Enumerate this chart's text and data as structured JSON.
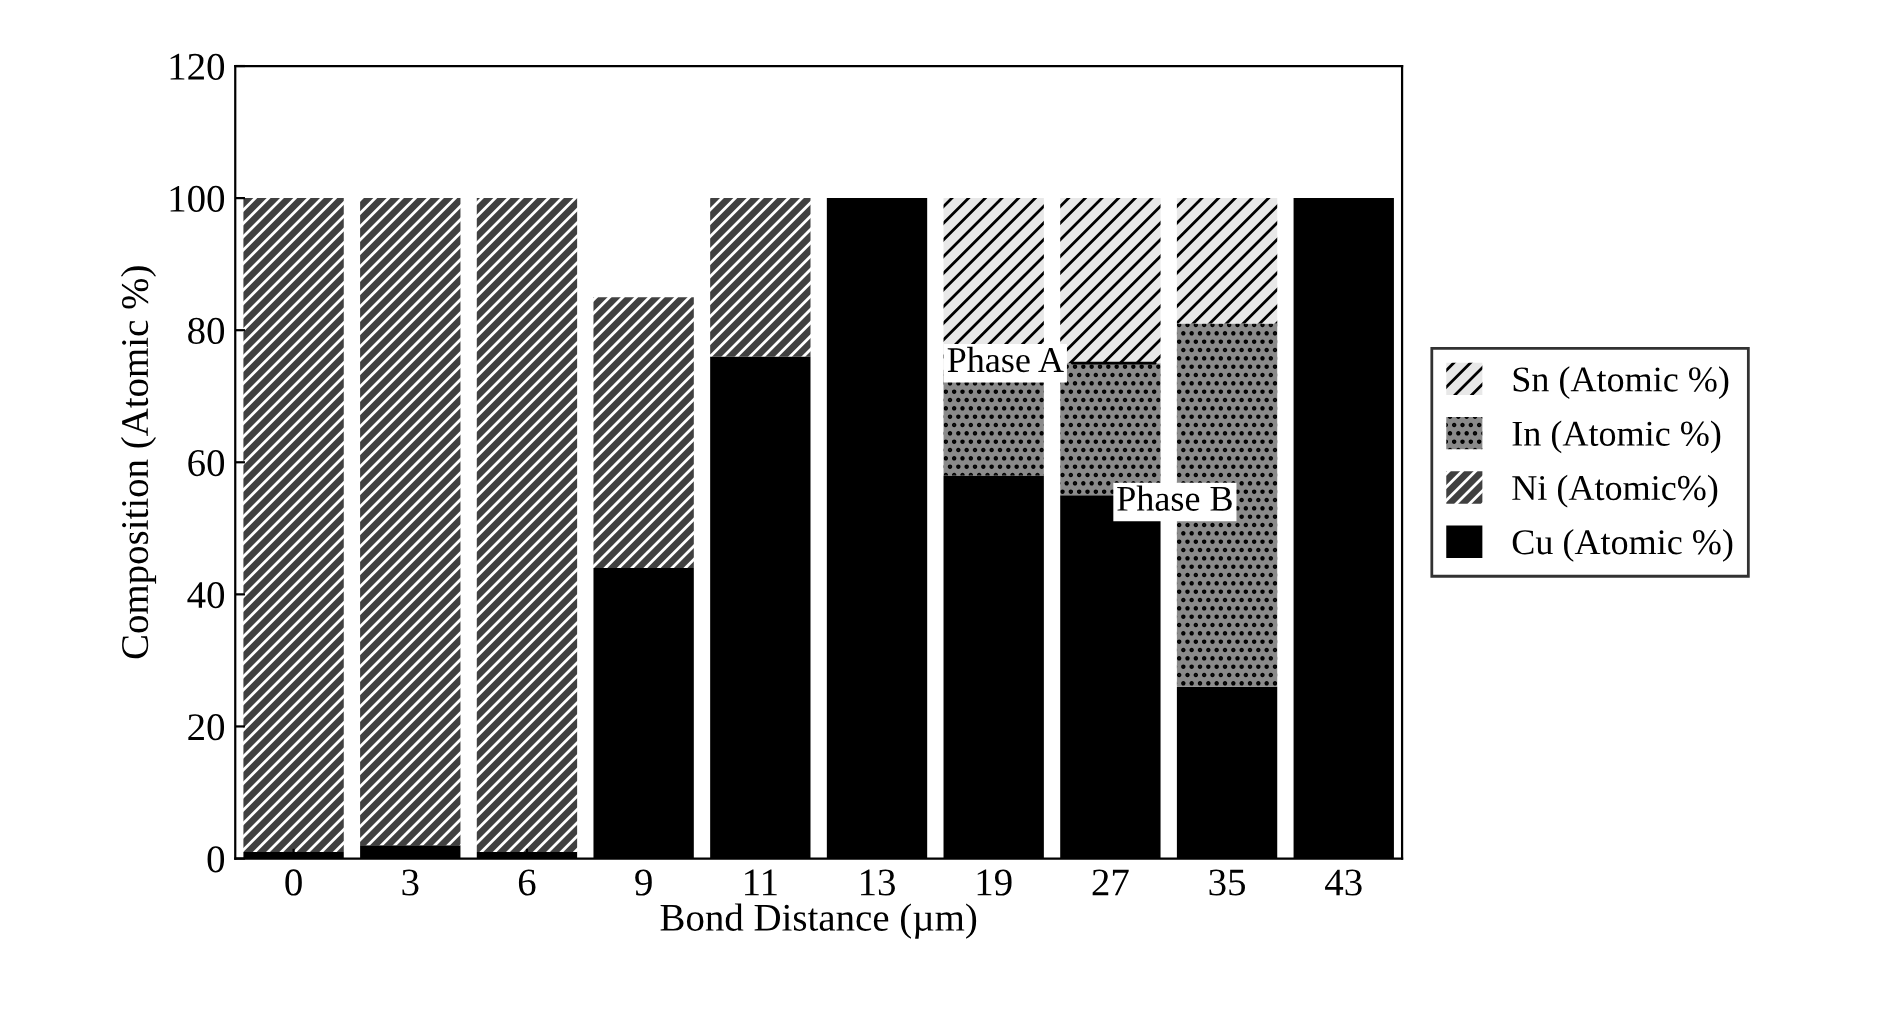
{
  "chart_data": {
    "type": "bar",
    "stacked": true,
    "xlabel": "Bond Distance (µm)",
    "ylabel": "Composition (Atomic %)",
    "categories": [
      "0",
      "3",
      "6",
      "9",
      "11",
      "13",
      "19",
      "27",
      "35",
      "43"
    ],
    "series": [
      {
        "name": "Cu (Atomic %)",
        "color": "#000000",
        "values": [
          1,
          2,
          1,
          44,
          76,
          100,
          58,
          55,
          26,
          100
        ]
      },
      {
        "name": "Ni (Atomic%)",
        "color": "#404040",
        "values": [
          99,
          98,
          99,
          41,
          24,
          0,
          0,
          0,
          0,
          0
        ]
      },
      {
        "name": "In (Atomic %)",
        "color": "#8a8a8a",
        "values": [
          0,
          0,
          0,
          0,
          0,
          0,
          16,
          20,
          55,
          0
        ]
      },
      {
        "name": "Sn (Atomic %)",
        "color": "#e8e8e8",
        "values": [
          0,
          0,
          0,
          0,
          0,
          0,
          26,
          25,
          19,
          0
        ]
      }
    ],
    "ylim": [
      0,
      120
    ],
    "yticks": [
      0,
      20,
      40,
      60,
      80,
      100,
      120
    ],
    "annotations": [
      {
        "text": "Phase A",
        "x": "27",
        "y": 75
      },
      {
        "text": "Phase B",
        "x": "27",
        "y": 55
      }
    ],
    "legend": "right",
    "grid": false
  }
}
